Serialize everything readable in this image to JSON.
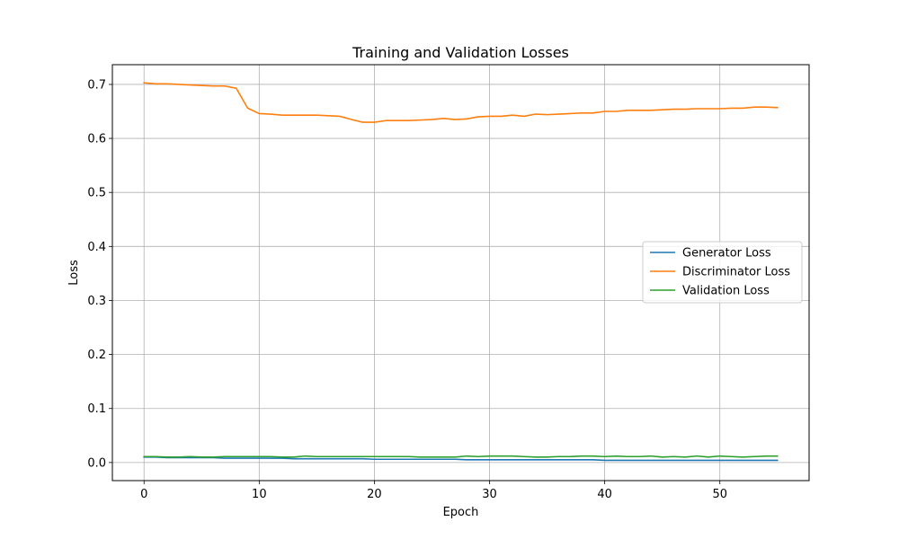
{
  "chart_data": {
    "type": "line",
    "title": "Training and Validation Losses",
    "xlabel": "Epoch",
    "ylabel": "Loss",
    "xlim": [
      -2.75,
      57.75
    ],
    "ylim": [
      -0.0335,
      0.7365
    ],
    "xticks": [
      0,
      10,
      20,
      30,
      40,
      50
    ],
    "yticks": [
      0.0,
      0.1,
      0.2,
      0.3,
      0.4,
      0.5,
      0.6,
      0.7
    ],
    "ytick_labels": [
      "0.0",
      "0.1",
      "0.2",
      "0.3",
      "0.4",
      "0.5",
      "0.6",
      "0.7"
    ],
    "grid": true,
    "legend_position": "center-right",
    "x": [
      0,
      1,
      2,
      3,
      4,
      5,
      6,
      7,
      8,
      9,
      10,
      11,
      12,
      13,
      14,
      15,
      16,
      17,
      18,
      19,
      20,
      21,
      22,
      23,
      24,
      25,
      26,
      27,
      28,
      29,
      30,
      31,
      32,
      33,
      34,
      35,
      36,
      37,
      38,
      39,
      40,
      41,
      42,
      43,
      44,
      45,
      46,
      47,
      48,
      49,
      50,
      51,
      52,
      53,
      54,
      55
    ],
    "series": [
      {
        "name": "Generator Loss",
        "color": "#1f77b4",
        "values": [
          0.01,
          0.01,
          0.009,
          0.009,
          0.009,
          0.009,
          0.009,
          0.008,
          0.008,
          0.008,
          0.008,
          0.008,
          0.008,
          0.007,
          0.007,
          0.007,
          0.007,
          0.007,
          0.007,
          0.007,
          0.006,
          0.006,
          0.006,
          0.006,
          0.006,
          0.006,
          0.006,
          0.006,
          0.005,
          0.005,
          0.005,
          0.005,
          0.005,
          0.005,
          0.005,
          0.005,
          0.005,
          0.005,
          0.005,
          0.005,
          0.004,
          0.004,
          0.004,
          0.004,
          0.004,
          0.004,
          0.004,
          0.004,
          0.004,
          0.004,
          0.004,
          0.004,
          0.004,
          0.004,
          0.004,
          0.004
        ]
      },
      {
        "name": "Discriminator Loss",
        "color": "#ff7f0e",
        "values": [
          0.703,
          0.701,
          0.701,
          0.7,
          0.699,
          0.698,
          0.697,
          0.697,
          0.693,
          0.656,
          0.646,
          0.645,
          0.643,
          0.643,
          0.643,
          0.643,
          0.642,
          0.641,
          0.635,
          0.63,
          0.63,
          0.633,
          0.633,
          0.633,
          0.634,
          0.635,
          0.637,
          0.635,
          0.636,
          0.64,
          0.641,
          0.641,
          0.643,
          0.641,
          0.645,
          0.644,
          0.645,
          0.646,
          0.647,
          0.647,
          0.65,
          0.65,
          0.652,
          0.652,
          0.652,
          0.653,
          0.654,
          0.654,
          0.655,
          0.655,
          0.655,
          0.656,
          0.656,
          0.658,
          0.658,
          0.657
        ]
      },
      {
        "name": "Validation Loss",
        "color": "#2ca02c",
        "values": [
          0.011,
          0.011,
          0.01,
          0.01,
          0.011,
          0.01,
          0.01,
          0.011,
          0.011,
          0.011,
          0.011,
          0.011,
          0.01,
          0.01,
          0.012,
          0.011,
          0.011,
          0.011,
          0.011,
          0.011,
          0.011,
          0.011,
          0.011,
          0.011,
          0.01,
          0.01,
          0.01,
          0.01,
          0.012,
          0.011,
          0.012,
          0.012,
          0.012,
          0.011,
          0.01,
          0.01,
          0.011,
          0.011,
          0.012,
          0.012,
          0.011,
          0.012,
          0.011,
          0.011,
          0.012,
          0.01,
          0.011,
          0.01,
          0.012,
          0.01,
          0.012,
          0.011,
          0.01,
          0.011,
          0.012,
          0.012
        ]
      }
    ]
  }
}
